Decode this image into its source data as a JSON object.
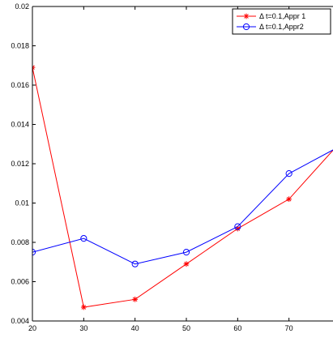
{
  "chart_data": {
    "type": "line",
    "title": "",
    "xlabel": "",
    "ylabel": "",
    "x": [
      20,
      30,
      40,
      50,
      60,
      70,
      80
    ],
    "xlim": [
      20,
      80
    ],
    "ylim": [
      0.004,
      0.02
    ],
    "xticks": [
      20,
      30,
      40,
      50,
      60,
      70,
      80
    ],
    "yticks": [
      0.004,
      0.006,
      0.008,
      0.01,
      0.012,
      0.014,
      0.016,
      0.018,
      0.02
    ],
    "xtick_labels": [
      "20",
      "30",
      "40",
      "50",
      "60",
      "70",
      "80"
    ],
    "ytick_labels": [
      "0.004",
      "0.006",
      "0.008",
      "0.01",
      "0.012",
      "0.014",
      "0.016",
      "0.018",
      "0.02"
    ],
    "grid": false,
    "legend_position": "top-right",
    "series": [
      {
        "name": "Δ t=0.1,Appr 1",
        "color": "#ff0000",
        "marker": "asterisk",
        "values": [
          0.0169,
          0.0047,
          0.0051,
          0.0069,
          0.0087,
          0.0102,
          0.0131
        ]
      },
      {
        "name": "Δ t=0.1,Appr2",
        "color": "#0000ff",
        "marker": "circle",
        "values": [
          0.0075,
          0.0082,
          0.0069,
          0.0075,
          0.0088,
          0.0115,
          0.0129
        ]
      }
    ]
  }
}
